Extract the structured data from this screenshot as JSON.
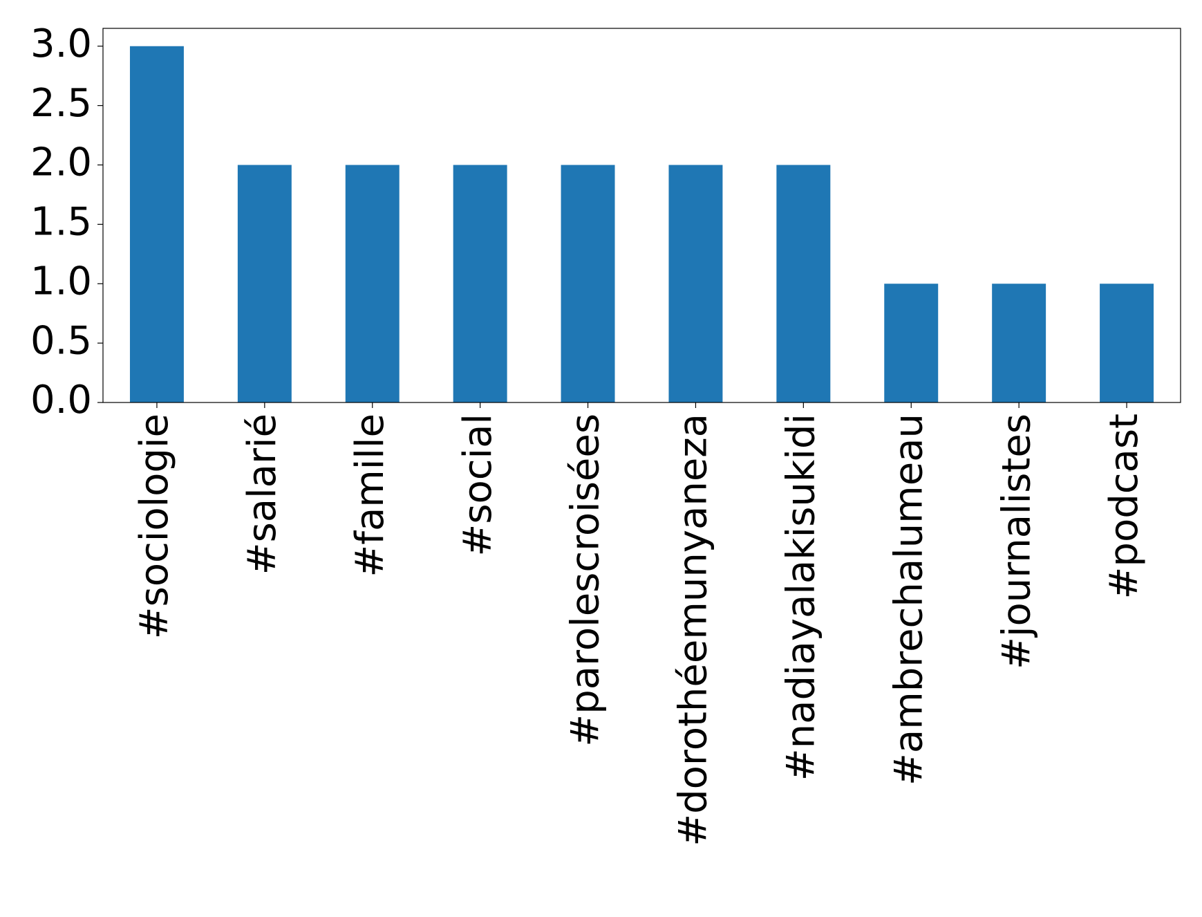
{
  "chart_data": {
    "type": "bar",
    "categories": [
      "#sociologie",
      "#salarié",
      "#famille",
      "#social",
      "#parolescroisées",
      "#dorothéemunyaneza",
      "#nadiayalakisukidi",
      "#ambrechalumeau",
      "#journalistes",
      "#podcast"
    ],
    "values": [
      3,
      2,
      2,
      2,
      2,
      2,
      2,
      1,
      1,
      1
    ],
    "color": "#1f77b4",
    "ylim": [
      0,
      3.15
    ],
    "yticks": [
      {
        "value": 0,
        "label": "0.0"
      },
      0.5,
      {
        "value": 1,
        "label": "1.0"
      },
      1.5,
      {
        "value": 2,
        "label": "2.0"
      },
      2.5,
      {
        "value": 3,
        "label": "3.0"
      }
    ],
    "grid": false
  }
}
